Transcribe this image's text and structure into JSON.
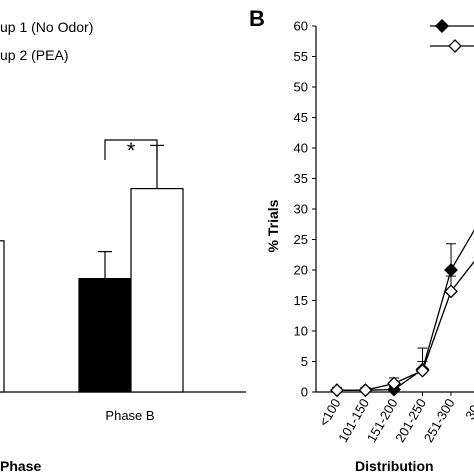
{
  "chart_data": [
    {
      "panel": "A",
      "type": "bar",
      "xlabel": "Phase",
      "categories": [
        "",
        "Phase B"
      ],
      "series": [
        {
          "name": "up 1 (No Odor)",
          "color": "#000000",
          "values": [
            null,
            6.3
          ],
          "errors": [
            null,
            1.5
          ]
        },
        {
          "name": "up 2 (PEA)",
          "color": "#ffffff",
          "values": [
            null,
            11.3
          ],
          "errors": [
            null,
            2.4
          ]
        }
      ],
      "partial_left_bar_value": 8.4,
      "significance": {
        "category": "Phase B",
        "label": "*"
      }
    },
    {
      "panel": "B",
      "panel_label": "B",
      "type": "line",
      "xlabel": "Distribution",
      "ylabel": "% Trials",
      "ylim": [
        0,
        60
      ],
      "yticks": [
        "0",
        "5",
        "10",
        "15",
        "20",
        "25",
        "30",
        "35",
        "40",
        "45",
        "50",
        "55",
        "60"
      ],
      "categories": [
        "<100",
        "101-150",
        "151-200",
        "201-250",
        "251-300",
        "301"
      ],
      "series": [
        {
          "marker": "filled-diamond",
          "values": [
            0.3,
            0.3,
            0.4,
            3.7,
            20.0,
            28.0
          ],
          "errors": [
            0.4,
            0.4,
            0.5,
            3.5,
            4.3,
            0
          ]
        },
        {
          "marker": "open-diamond",
          "values": [
            0.3,
            0.3,
            1.4,
            3.5,
            16.5,
            22.5
          ],
          "errors": [
            0.4,
            0.4,
            0.9,
            1.5,
            2.5,
            0
          ]
        }
      ]
    }
  ]
}
